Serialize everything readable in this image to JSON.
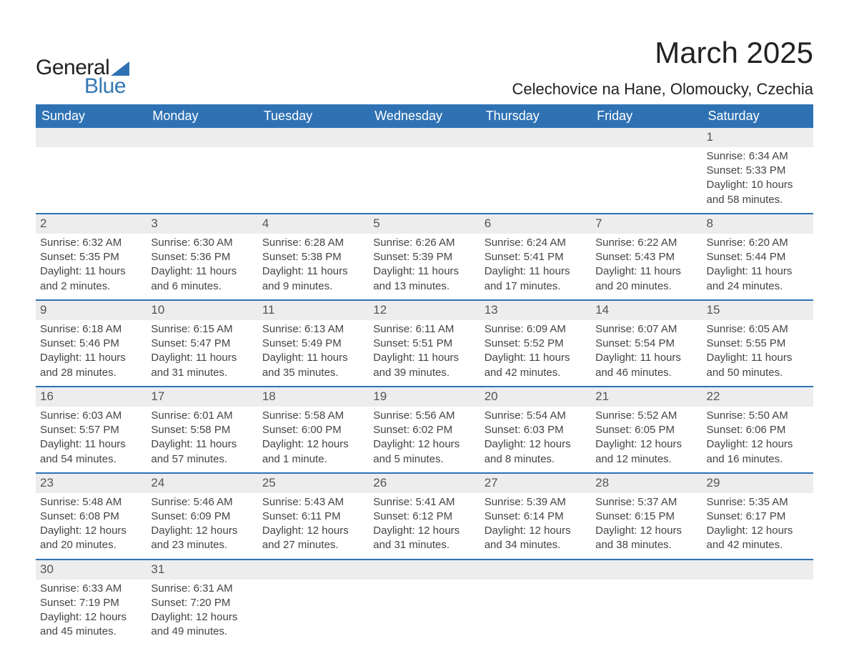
{
  "logo": {
    "text1": "General",
    "text2": "Blue",
    "shape_color": "#2f72b4"
  },
  "title": "March 2025",
  "location": "Celechovice na Hane, Olomoucky, Czechia",
  "colors": {
    "header_bg": "#2f72b4",
    "header_text": "#ffffff",
    "daynum_bg": "#ededed",
    "row_border": "#2f72b4",
    "body_text": "#444444",
    "page_bg": "#ffffff"
  },
  "typography": {
    "title_fontsize": 42,
    "location_fontsize": 22,
    "weekday_fontsize": 18,
    "daynum_fontsize": 17,
    "cell_fontsize": 15,
    "font_family": "Arial"
  },
  "weekdays": [
    "Sunday",
    "Monday",
    "Tuesday",
    "Wednesday",
    "Thursday",
    "Friday",
    "Saturday"
  ],
  "weeks": [
    [
      null,
      null,
      null,
      null,
      null,
      null,
      {
        "n": "1",
        "sr": "Sunrise: 6:34 AM",
        "ss": "Sunset: 5:33 PM",
        "d1": "Daylight: 10 hours",
        "d2": "and 58 minutes."
      }
    ],
    [
      {
        "n": "2",
        "sr": "Sunrise: 6:32 AM",
        "ss": "Sunset: 5:35 PM",
        "d1": "Daylight: 11 hours",
        "d2": "and 2 minutes."
      },
      {
        "n": "3",
        "sr": "Sunrise: 6:30 AM",
        "ss": "Sunset: 5:36 PM",
        "d1": "Daylight: 11 hours",
        "d2": "and 6 minutes."
      },
      {
        "n": "4",
        "sr": "Sunrise: 6:28 AM",
        "ss": "Sunset: 5:38 PM",
        "d1": "Daylight: 11 hours",
        "d2": "and 9 minutes."
      },
      {
        "n": "5",
        "sr": "Sunrise: 6:26 AM",
        "ss": "Sunset: 5:39 PM",
        "d1": "Daylight: 11 hours",
        "d2": "and 13 minutes."
      },
      {
        "n": "6",
        "sr": "Sunrise: 6:24 AM",
        "ss": "Sunset: 5:41 PM",
        "d1": "Daylight: 11 hours",
        "d2": "and 17 minutes."
      },
      {
        "n": "7",
        "sr": "Sunrise: 6:22 AM",
        "ss": "Sunset: 5:43 PM",
        "d1": "Daylight: 11 hours",
        "d2": "and 20 minutes."
      },
      {
        "n": "8",
        "sr": "Sunrise: 6:20 AM",
        "ss": "Sunset: 5:44 PM",
        "d1": "Daylight: 11 hours",
        "d2": "and 24 minutes."
      }
    ],
    [
      {
        "n": "9",
        "sr": "Sunrise: 6:18 AM",
        "ss": "Sunset: 5:46 PM",
        "d1": "Daylight: 11 hours",
        "d2": "and 28 minutes."
      },
      {
        "n": "10",
        "sr": "Sunrise: 6:15 AM",
        "ss": "Sunset: 5:47 PM",
        "d1": "Daylight: 11 hours",
        "d2": "and 31 minutes."
      },
      {
        "n": "11",
        "sr": "Sunrise: 6:13 AM",
        "ss": "Sunset: 5:49 PM",
        "d1": "Daylight: 11 hours",
        "d2": "and 35 minutes."
      },
      {
        "n": "12",
        "sr": "Sunrise: 6:11 AM",
        "ss": "Sunset: 5:51 PM",
        "d1": "Daylight: 11 hours",
        "d2": "and 39 minutes."
      },
      {
        "n": "13",
        "sr": "Sunrise: 6:09 AM",
        "ss": "Sunset: 5:52 PM",
        "d1": "Daylight: 11 hours",
        "d2": "and 42 minutes."
      },
      {
        "n": "14",
        "sr": "Sunrise: 6:07 AM",
        "ss": "Sunset: 5:54 PM",
        "d1": "Daylight: 11 hours",
        "d2": "and 46 minutes."
      },
      {
        "n": "15",
        "sr": "Sunrise: 6:05 AM",
        "ss": "Sunset: 5:55 PM",
        "d1": "Daylight: 11 hours",
        "d2": "and 50 minutes."
      }
    ],
    [
      {
        "n": "16",
        "sr": "Sunrise: 6:03 AM",
        "ss": "Sunset: 5:57 PM",
        "d1": "Daylight: 11 hours",
        "d2": "and 54 minutes."
      },
      {
        "n": "17",
        "sr": "Sunrise: 6:01 AM",
        "ss": "Sunset: 5:58 PM",
        "d1": "Daylight: 11 hours",
        "d2": "and 57 minutes."
      },
      {
        "n": "18",
        "sr": "Sunrise: 5:58 AM",
        "ss": "Sunset: 6:00 PM",
        "d1": "Daylight: 12 hours",
        "d2": "and 1 minute."
      },
      {
        "n": "19",
        "sr": "Sunrise: 5:56 AM",
        "ss": "Sunset: 6:02 PM",
        "d1": "Daylight: 12 hours",
        "d2": "and 5 minutes."
      },
      {
        "n": "20",
        "sr": "Sunrise: 5:54 AM",
        "ss": "Sunset: 6:03 PM",
        "d1": "Daylight: 12 hours",
        "d2": "and 8 minutes."
      },
      {
        "n": "21",
        "sr": "Sunrise: 5:52 AM",
        "ss": "Sunset: 6:05 PM",
        "d1": "Daylight: 12 hours",
        "d2": "and 12 minutes."
      },
      {
        "n": "22",
        "sr": "Sunrise: 5:50 AM",
        "ss": "Sunset: 6:06 PM",
        "d1": "Daylight: 12 hours",
        "d2": "and 16 minutes."
      }
    ],
    [
      {
        "n": "23",
        "sr": "Sunrise: 5:48 AM",
        "ss": "Sunset: 6:08 PM",
        "d1": "Daylight: 12 hours",
        "d2": "and 20 minutes."
      },
      {
        "n": "24",
        "sr": "Sunrise: 5:46 AM",
        "ss": "Sunset: 6:09 PM",
        "d1": "Daylight: 12 hours",
        "d2": "and 23 minutes."
      },
      {
        "n": "25",
        "sr": "Sunrise: 5:43 AM",
        "ss": "Sunset: 6:11 PM",
        "d1": "Daylight: 12 hours",
        "d2": "and 27 minutes."
      },
      {
        "n": "26",
        "sr": "Sunrise: 5:41 AM",
        "ss": "Sunset: 6:12 PM",
        "d1": "Daylight: 12 hours",
        "d2": "and 31 minutes."
      },
      {
        "n": "27",
        "sr": "Sunrise: 5:39 AM",
        "ss": "Sunset: 6:14 PM",
        "d1": "Daylight: 12 hours",
        "d2": "and 34 minutes."
      },
      {
        "n": "28",
        "sr": "Sunrise: 5:37 AM",
        "ss": "Sunset: 6:15 PM",
        "d1": "Daylight: 12 hours",
        "d2": "and 38 minutes."
      },
      {
        "n": "29",
        "sr": "Sunrise: 5:35 AM",
        "ss": "Sunset: 6:17 PM",
        "d1": "Daylight: 12 hours",
        "d2": "and 42 minutes."
      }
    ],
    [
      {
        "n": "30",
        "sr": "Sunrise: 6:33 AM",
        "ss": "Sunset: 7:19 PM",
        "d1": "Daylight: 12 hours",
        "d2": "and 45 minutes."
      },
      {
        "n": "31",
        "sr": "Sunrise: 6:31 AM",
        "ss": "Sunset: 7:20 PM",
        "d1": "Daylight: 12 hours",
        "d2": "and 49 minutes."
      },
      null,
      null,
      null,
      null,
      null
    ]
  ]
}
